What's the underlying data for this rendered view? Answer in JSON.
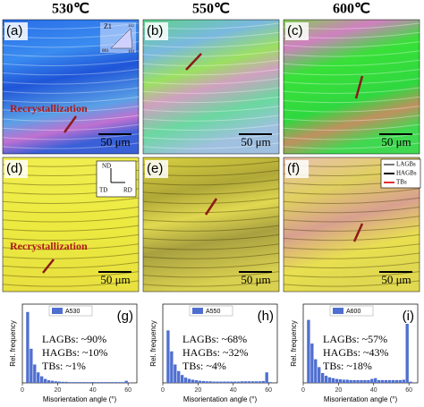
{
  "headers": [
    "530℃",
    "550℃",
    "600℃"
  ],
  "maps": [
    {
      "label": "(a)",
      "scale": "50 μm",
      "annotation": "Recrystallization"
    },
    {
      "label": "(b)",
      "scale": "50 μm"
    },
    {
      "label": "(c)",
      "scale": "50 μm"
    },
    {
      "label": "(d)",
      "scale": "50 μm",
      "annotation": "Recrystallization"
    },
    {
      "label": "(e)",
      "scale": "50 μm"
    },
    {
      "label": "(f)",
      "scale": "50 μm"
    }
  ],
  "ipf_key": {
    "title": "Z1",
    "corners": [
      "001",
      "101",
      "111"
    ]
  },
  "axes_key": [
    "ND",
    "TD",
    "RD"
  ],
  "boundary_legend": [
    "LAGBs",
    "HAGBs",
    "TBs"
  ],
  "chart_data": [
    {
      "type": "histogram",
      "label": "(g)",
      "xlabel": "Misorientation angle (°)",
      "ylabel": "Rel. frequency",
      "xlim": [
        0,
        65
      ],
      "xticks": [
        0,
        20,
        40,
        60
      ],
      "ylim": [
        0,
        0.3
      ],
      "bins": [
        2,
        4,
        6,
        8,
        10,
        12,
        14,
        16,
        18,
        20,
        22,
        24,
        26,
        28,
        30,
        32,
        34,
        36,
        38,
        40,
        42,
        44,
        46,
        48,
        50,
        52,
        54,
        56,
        58,
        60,
        62
      ],
      "series": [
        {
          "name": "A530",
          "color": "#4f6fd0",
          "values": [
            0.27,
            0.13,
            0.07,
            0.04,
            0.025,
            0.015,
            0.01,
            0.008,
            0.006,
            0.005,
            0.004,
            0.004,
            0.003,
            0.003,
            0.003,
            0.003,
            0.003,
            0.003,
            0.003,
            0.003,
            0.003,
            0.003,
            0.003,
            0.003,
            0.003,
            0.003,
            0.003,
            0.003,
            0.008,
            0.002
          ]
        }
      ],
      "annotations": [
        "LAGBs: ~90%",
        "HAGBs: ~10%",
        "TBs: ~1%"
      ]
    },
    {
      "type": "histogram",
      "label": "(h)",
      "xlabel": "Misorientation angle (°)",
      "ylabel": "Rel. frequency",
      "xlim": [
        0,
        65
      ],
      "xticks": [
        0,
        20,
        40,
        60
      ],
      "ylim": [
        0,
        0.3
      ],
      "bins": [
        2,
        4,
        6,
        8,
        10,
        12,
        14,
        16,
        18,
        20,
        22,
        24,
        26,
        28,
        30,
        32,
        34,
        36,
        38,
        40,
        42,
        44,
        46,
        48,
        50,
        52,
        54,
        56,
        58,
        60,
        62
      ],
      "series": [
        {
          "name": "A550",
          "color": "#4f6fd0",
          "values": [
            0.2,
            0.12,
            0.07,
            0.045,
            0.03,
            0.02,
            0.015,
            0.012,
            0.01,
            0.008,
            0.007,
            0.006,
            0.006,
            0.005,
            0.005,
            0.005,
            0.005,
            0.005,
            0.005,
            0.005,
            0.005,
            0.006,
            0.006,
            0.006,
            0.006,
            0.006,
            0.006,
            0.007,
            0.04,
            0.003
          ]
        }
      ],
      "annotations": [
        "LAGBs: ~68%",
        "HAGBs: ~32%",
        "TBs: ~4%"
      ]
    },
    {
      "type": "histogram",
      "label": "(i)",
      "xlabel": "Misorientation angle (°)",
      "ylabel": "Rel. frequency",
      "xlim": [
        0,
        65
      ],
      "xticks": [
        0,
        20,
        40,
        60
      ],
      "ylim": [
        0,
        0.2
      ],
      "bins": [
        2,
        4,
        6,
        8,
        10,
        12,
        14,
        16,
        18,
        20,
        22,
        24,
        26,
        28,
        30,
        32,
        34,
        36,
        38,
        40,
        42,
        44,
        46,
        48,
        50,
        52,
        54,
        56,
        58,
        60,
        62
      ],
      "series": [
        {
          "name": "A600",
          "color": "#4f6fd0",
          "values": [
            0.16,
            0.1,
            0.06,
            0.04,
            0.025,
            0.018,
            0.014,
            0.012,
            0.01,
            0.009,
            0.008,
            0.008,
            0.007,
            0.007,
            0.007,
            0.007,
            0.007,
            0.007,
            0.01,
            0.012,
            0.007,
            0.007,
            0.007,
            0.007,
            0.007,
            0.007,
            0.007,
            0.008,
            0.15,
            0.003
          ]
        }
      ],
      "annotations": [
        "LAGBs: ~57%",
        "HAGBs: ~43%",
        "TBs: ~18%"
      ]
    }
  ]
}
